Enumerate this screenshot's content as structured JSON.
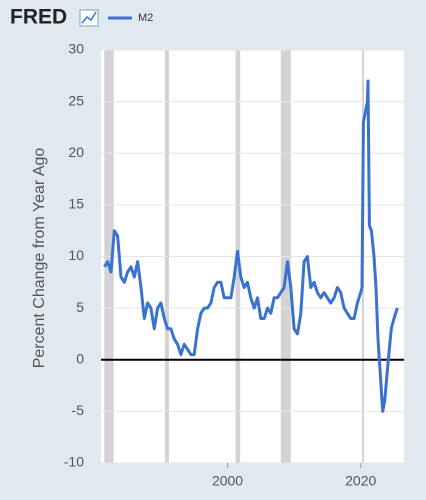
{
  "chart_data": {
    "type": "line",
    "logo": "FRED",
    "ylabel": "Percent Change from Year Ago",
    "series": [
      {
        "name": "M2",
        "color": "#3a72d2",
        "x": [
          1981.5,
          1982,
          1982.5,
          1983,
          1983.5,
          1984,
          1984.5,
          1985,
          1985.5,
          1986,
          1986.5,
          1987,
          1987.5,
          1988,
          1988.5,
          1989,
          1989.5,
          1990,
          1990.5,
          1991,
          1991.5,
          1992,
          1992.5,
          1993,
          1993.5,
          1994,
          1994.5,
          1995,
          1995.5,
          1996,
          1996.5,
          1997,
          1997.5,
          1998,
          1998.5,
          1999,
          1999.5,
          2000,
          2000.5,
          2001,
          2001.5,
          2002,
          2002.5,
          2003,
          2003.5,
          2004,
          2004.5,
          2005,
          2005.5,
          2006,
          2006.5,
          2007,
          2007.5,
          2008,
          2008.5,
          2009,
          2009.5,
          2010,
          2010.5,
          2011,
          2011.5,
          2012,
          2012.5,
          2013,
          2013.5,
          2014,
          2014.5,
          2015,
          2015.5,
          2016,
          2016.5,
          2017,
          2017.5,
          2018,
          2018.5,
          2019,
          2019.5,
          2020,
          2020.2,
          2020.4,
          2020.7,
          2021,
          2021.1,
          2021.3,
          2021.6,
          2022,
          2022.3,
          2022.6,
          2023,
          2023.3,
          2023.6,
          2024,
          2024.3,
          2024.6,
          2025,
          2025.5
        ],
        "values": [
          9,
          9.5,
          8.5,
          12.5,
          12,
          8,
          7.5,
          8.5,
          9,
          8,
          9.5,
          7,
          4,
          5.5,
          5,
          3,
          5,
          5.5,
          4,
          3,
          3,
          2,
          1.5,
          0.5,
          1.5,
          1,
          0.5,
          0.5,
          3,
          4.5,
          5,
          5,
          5.5,
          7,
          7.5,
          7.5,
          6,
          6,
          6,
          8,
          10.5,
          8,
          7,
          7.5,
          6,
          5,
          6,
          4,
          4,
          5,
          4.5,
          6,
          6,
          6.5,
          7,
          9.5,
          7,
          3,
          2.5,
          4.5,
          9.5,
          10,
          7,
          7.5,
          6.5,
          6,
          6.5,
          6,
          5.5,
          6,
          7,
          6.5,
          5,
          4.5,
          4,
          4,
          5.5,
          6.5,
          7,
          23,
          24,
          25,
          27,
          13,
          12.5,
          10,
          7,
          2,
          -2,
          -5,
          -4,
          -1,
          1,
          3,
          4,
          5
        ]
      }
    ],
    "recessions": [
      [
        1981.5,
        1982.9
      ],
      [
        1990.6,
        1991.2
      ],
      [
        2001.2,
        2001.9
      ],
      [
        2008.0,
        2009.5
      ],
      [
        2020.2,
        2020.3
      ]
    ],
    "recession_color": "#c8c8c8",
    "xlim": [
      1981,
      2026.5
    ],
    "xticks": [
      2000,
      2020
    ],
    "ylim": [
      -10,
      30
    ],
    "yticks": [
      -10,
      -5,
      0,
      5,
      10,
      15,
      20,
      25,
      30
    ],
    "grid": true
  }
}
